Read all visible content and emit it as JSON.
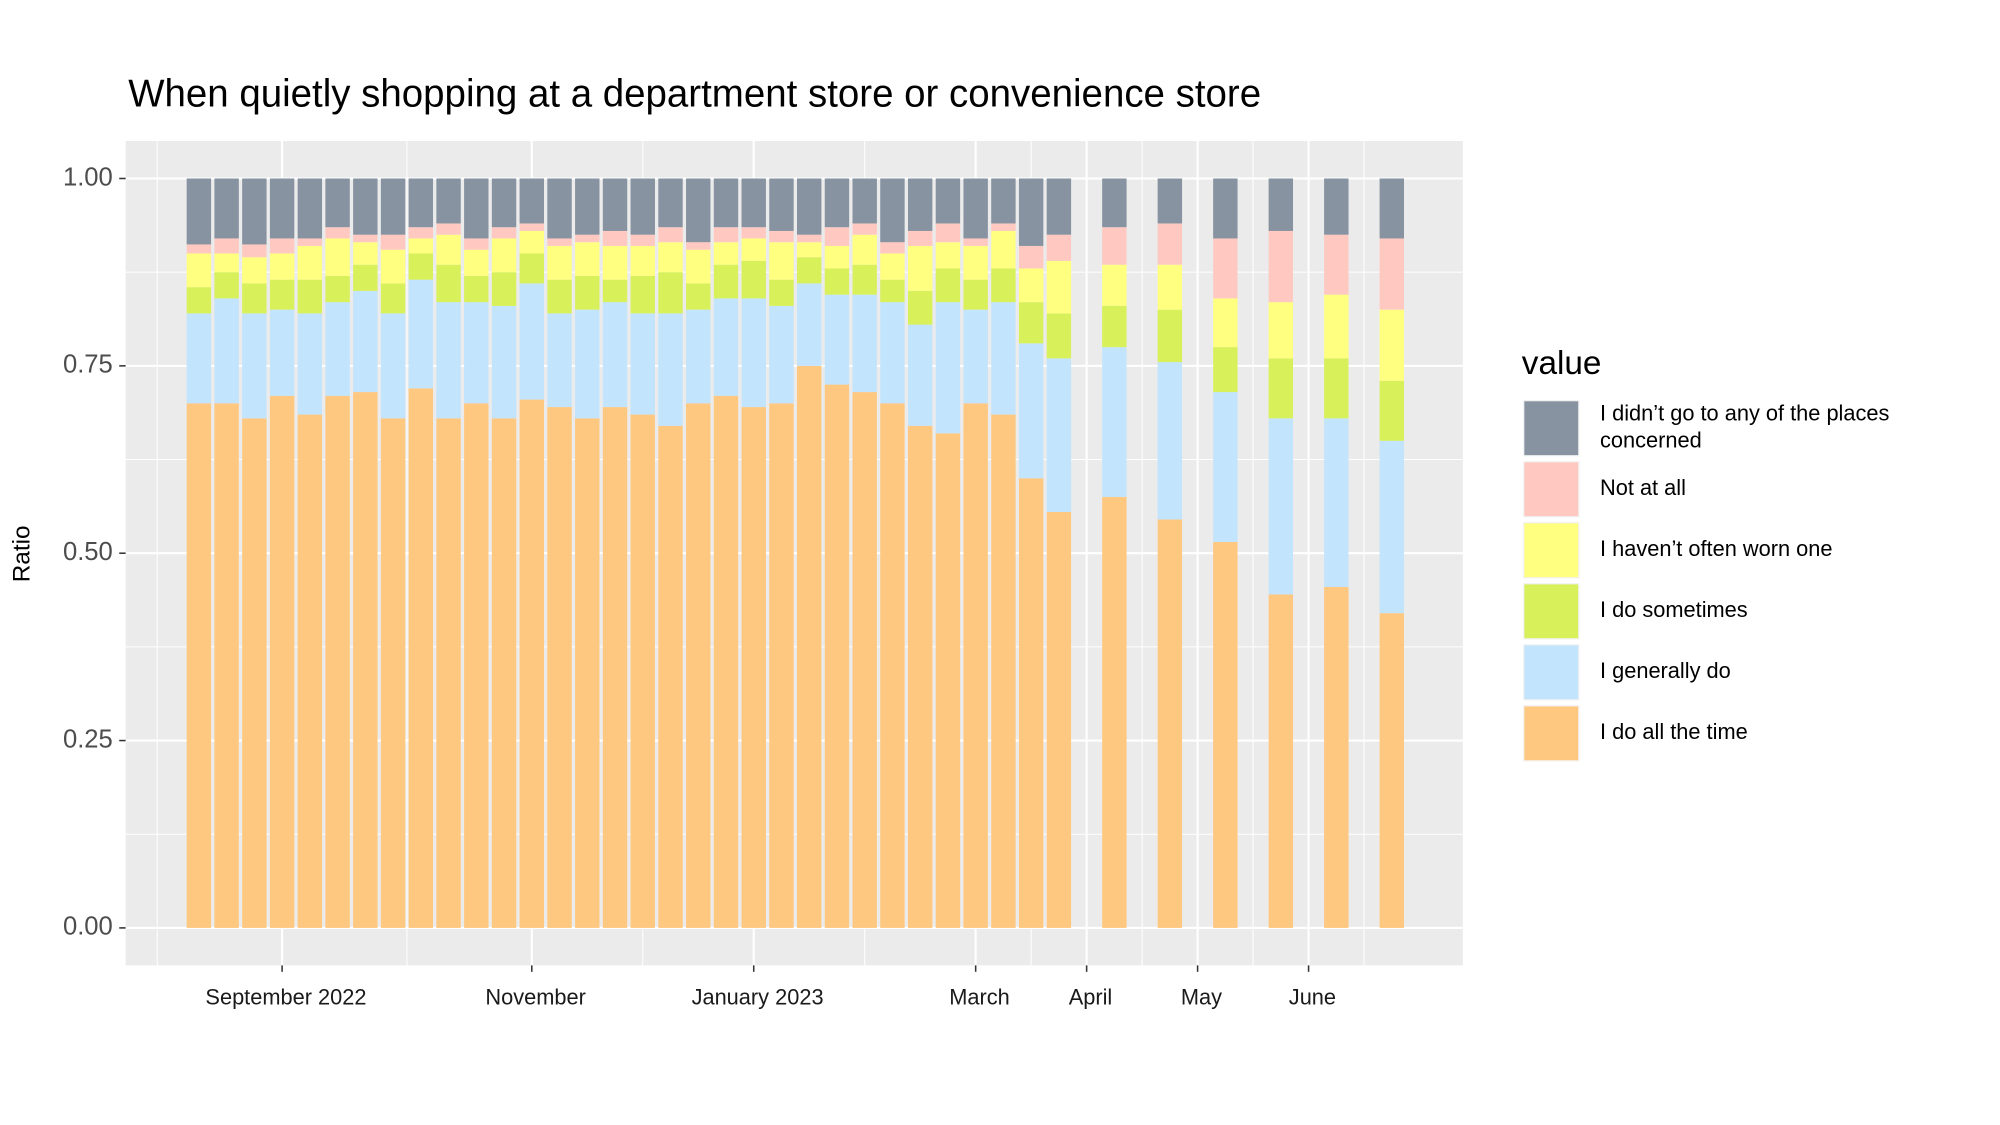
{
  "chart_data": {
    "type": "stacked_bar",
    "title": "When quietly shopping at a department store or convenience store",
    "y_label": "Ratio",
    "legend_title": "value",
    "legend_position": "right",
    "grid": true,
    "x": [
      8,
      8.25,
      8.5,
      8.75,
      9,
      9.25,
      9.5,
      9.75,
      10,
      10.25,
      10.5,
      10.75,
      11,
      11.25,
      11.5,
      11.75,
      12,
      12.25,
      12.5,
      12.75,
      13,
      13.25,
      13.5,
      13.75,
      14,
      14.25,
      14.5,
      14.75,
      15,
      15.25,
      15.5,
      15.75,
      16.25,
      16.75,
      17.25,
      17.75,
      18.25,
      18.75
    ],
    "xlim": [
      7.34,
      19.39
    ],
    "xticks": [
      {
        "value": 8.75,
        "label": "September 2022"
      },
      {
        "value": 11,
        "label": "November"
      },
      {
        "value": 13,
        "label": "January 2023"
      },
      {
        "value": 15,
        "label": "March"
      },
      {
        "value": 16,
        "label": "April"
      },
      {
        "value": 17,
        "label": "May"
      },
      {
        "value": 18,
        "label": "June"
      }
    ],
    "ylim": [
      -0.05,
      1.05
    ],
    "yticks": [
      {
        "value": 0,
        "label": "0.00"
      },
      {
        "value": 0.25,
        "label": "0.25"
      },
      {
        "value": 0.5,
        "label": "0.50"
      },
      {
        "value": 0.75,
        "label": "0.75"
      },
      {
        "value": 1,
        "label": "1.00"
      }
    ],
    "series": [
      {
        "name": "I didn’t go to any of the places concerned",
        "color": "#8793a0",
        "values": [
          0.088,
          0.08,
          0.088,
          0.08,
          0.08,
          0.065,
          0.075,
          0.075,
          0.065,
          0.06,
          0.08,
          0.065,
          0.06,
          0.08,
          0.075,
          0.07,
          0.075,
          0.065,
          0.085,
          0.065,
          0.065,
          0.07,
          0.075,
          0.065,
          0.06,
          0.085,
          0.07,
          0.06,
          0.08,
          0.06,
          0.09,
          0.075,
          0.065,
          0.06,
          0.08,
          0.07,
          0.075,
          0.08
        ]
      },
      {
        "name": "Not at all",
        "color": "#ffc9c1",
        "values": [
          0.012,
          0.02,
          0.017,
          0.02,
          0.01,
          0.015,
          0.01,
          0.02,
          0.015,
          0.015,
          0.015,
          0.015,
          0.01,
          0.01,
          0.01,
          0.02,
          0.015,
          0.02,
          0.01,
          0.02,
          0.015,
          0.015,
          0.01,
          0.025,
          0.015,
          0.015,
          0.02,
          0.025,
          0.01,
          0.01,
          0.03,
          0.035,
          0.05,
          0.055,
          0.08,
          0.095,
          0.08,
          0.095
        ]
      },
      {
        "name": "I haven’t often worn one",
        "color": "#ffff80",
        "values": [
          0.045,
          0.025,
          0.035,
          0.035,
          0.045,
          0.05,
          0.03,
          0.045,
          0.02,
          0.04,
          0.035,
          0.045,
          0.03,
          0.045,
          0.045,
          0.045,
          0.04,
          0.04,
          0.045,
          0.03,
          0.03,
          0.05,
          0.02,
          0.03,
          0.04,
          0.035,
          0.06,
          0.035,
          0.045,
          0.05,
          0.045,
          0.07,
          0.055,
          0.06,
          0.065,
          0.075,
          0.085,
          0.095
        ]
      },
      {
        "name": "I do sometimes",
        "color": "#d8f05a",
        "values": [
          0.035,
          0.035,
          0.04,
          0.04,
          0.045,
          0.035,
          0.035,
          0.04,
          0.035,
          0.05,
          0.035,
          0.045,
          0.04,
          0.045,
          0.045,
          0.03,
          0.05,
          0.055,
          0.035,
          0.045,
          0.05,
          0.035,
          0.035,
          0.035,
          0.04,
          0.03,
          0.045,
          0.045,
          0.04,
          0.045,
          0.055,
          0.06,
          0.055,
          0.07,
          0.06,
          0.08,
          0.08,
          0.08
        ]
      },
      {
        "name": "I generally do",
        "color": "#c2e4fd",
        "values": [
          0.12,
          0.14,
          0.14,
          0.115,
          0.135,
          0.125,
          0.135,
          0.14,
          0.145,
          0.155,
          0.135,
          0.15,
          0.155,
          0.125,
          0.145,
          0.14,
          0.135,
          0.15,
          0.125,
          0.13,
          0.145,
          0.13,
          0.11,
          0.12,
          0.13,
          0.135,
          0.135,
          0.175,
          0.125,
          0.15,
          0.18,
          0.205,
          0.2,
          0.21,
          0.2,
          0.235,
          0.225,
          0.23
        ]
      },
      {
        "name": "I do all the time",
        "color": "#ffc880",
        "values": [
          0.7,
          0.7,
          0.68,
          0.71,
          0.685,
          0.71,
          0.715,
          0.68,
          0.72,
          0.68,
          0.7,
          0.68,
          0.705,
          0.695,
          0.68,
          0.695,
          0.685,
          0.67,
          0.7,
          0.71,
          0.695,
          0.7,
          0.75,
          0.725,
          0.715,
          0.7,
          0.67,
          0.66,
          0.7,
          0.685,
          0.6,
          0.555,
          0.575,
          0.545,
          0.515,
          0.445,
          0.455,
          0.42
        ]
      }
    ]
  }
}
